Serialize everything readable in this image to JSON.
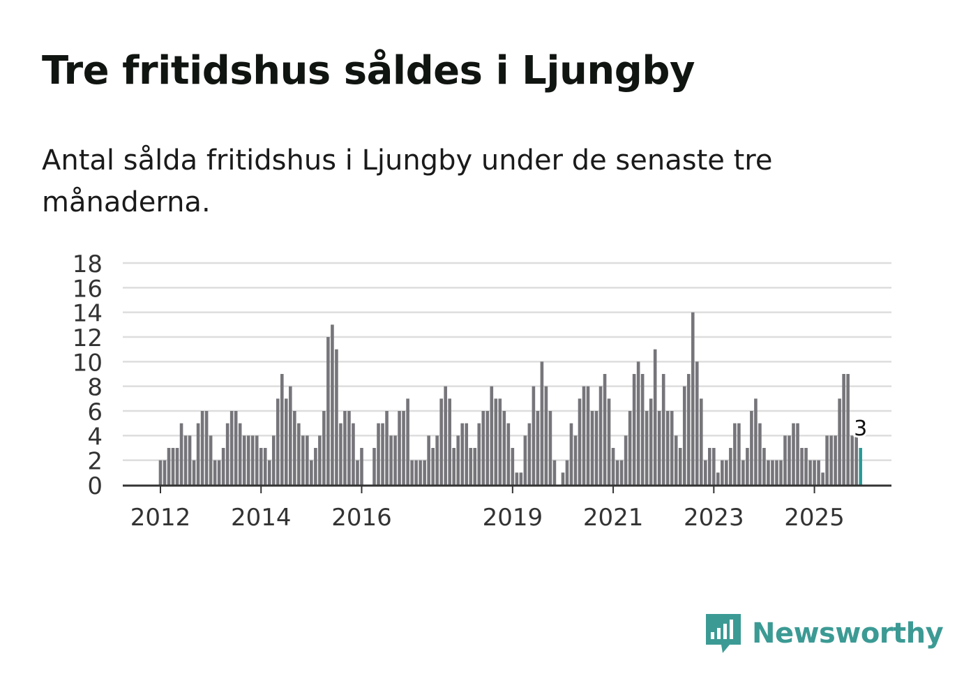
{
  "header": {
    "title": "Tre fritidshus såldes i Ljungby",
    "subtitle": "Antal sålda fritidshus i Ljungby under de senaste tre månaderna."
  },
  "brand": {
    "name": "Newsworthy",
    "color": "#3c9a94",
    "icon": "newsworthy-bar-chart-icon"
  },
  "chart_data": {
    "type": "bar",
    "title": "",
    "xlabel": "",
    "ylabel": "",
    "ylim": [
      0,
      18
    ],
    "y_ticks": [
      0,
      2,
      4,
      6,
      8,
      10,
      12,
      14,
      16,
      18
    ],
    "grid": true,
    "start_month": "2012-01",
    "x_tick_labels": [
      "2012",
      "2014",
      "2016",
      "2019",
      "2021",
      "2023",
      "2025"
    ],
    "x_ticks": [
      "2012-01",
      "2014-01",
      "2016-01",
      "2019-01",
      "2021-01",
      "2023-01",
      "2025-01"
    ],
    "series_color": "#76757a",
    "highlight_color": "#2a9a95",
    "highlight_label": "3",
    "values": [
      2,
      2,
      3,
      3,
      3,
      5,
      4,
      4,
      2,
      5,
      6,
      6,
      4,
      2,
      2,
      3,
      5,
      6,
      6,
      5,
      4,
      4,
      4,
      4,
      3,
      3,
      2,
      4,
      7,
      9,
      7,
      8,
      6,
      5,
      4,
      4,
      2,
      3,
      4,
      6,
      12,
      13,
      11,
      5,
      6,
      6,
      5,
      2,
      3,
      0,
      0,
      3,
      5,
      5,
      6,
      4,
      4,
      6,
      6,
      7,
      2,
      2,
      2,
      2,
      4,
      3,
      4,
      7,
      8,
      7,
      3,
      4,
      5,
      5,
      3,
      3,
      5,
      6,
      6,
      8,
      7,
      7,
      6,
      5,
      3,
      1,
      1,
      4,
      5,
      8,
      6,
      10,
      8,
      6,
      2,
      0,
      1,
      2,
      5,
      4,
      7,
      8,
      8,
      6,
      6,
      8,
      9,
      7,
      3,
      2,
      2,
      4,
      6,
      9,
      10,
      9,
      6,
      7,
      11,
      6,
      9,
      6,
      6,
      4,
      3,
      8,
      9,
      14,
      10,
      7,
      2,
      3,
      3,
      1,
      2,
      2,
      3,
      5,
      5,
      2,
      3,
      6,
      7,
      5,
      3,
      2,
      2,
      2,
      2,
      4,
      4,
      5,
      5,
      3,
      3,
      2,
      2,
      2,
      1,
      4,
      4,
      4,
      7,
      9,
      9,
      4,
      4,
      3
    ]
  }
}
